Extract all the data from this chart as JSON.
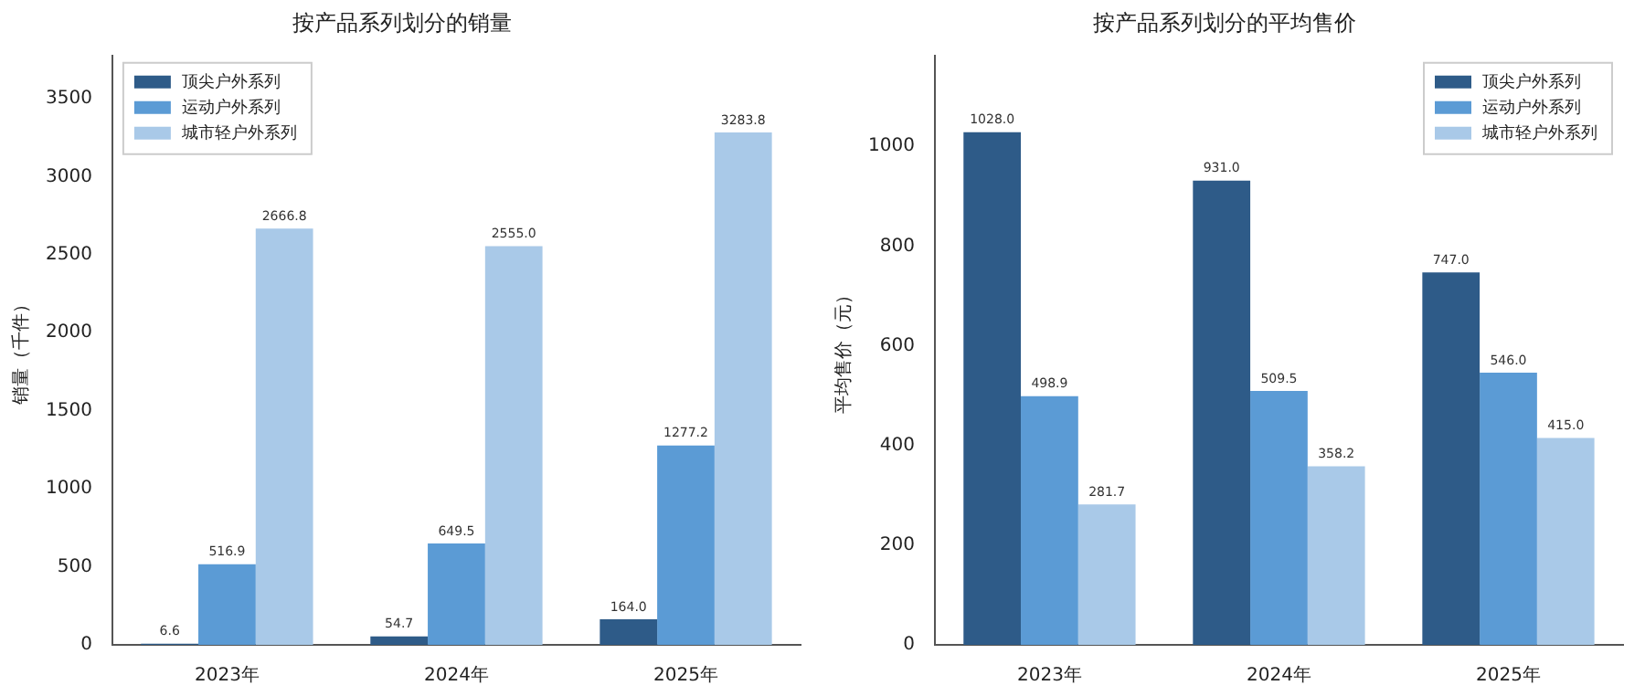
{
  "chart_data": [
    {
      "type": "bar",
      "title": "按产品系列划分的销量",
      "ylabel": "销量（千件）",
      "categories": [
        "2023年",
        "2024年",
        "2025年"
      ],
      "series": [
        {
          "name": "顶尖户外系列",
          "color": "#2e5b88",
          "values": [
            6.6,
            54.7,
            164
          ],
          "value_labels": [
            "6.6",
            "54.7",
            "164.0"
          ]
        },
        {
          "name": "运动户外系列",
          "color": "#5b9bd5",
          "values": [
            516.9,
            649.5,
            1277.2
          ],
          "value_labels": [
            "516.9",
            "649.5",
            "1277.2"
          ]
        },
        {
          "name": "城市轻户外系列",
          "color": "#a9c9e8",
          "values": [
            2666.8,
            2555,
            3283.8
          ],
          "value_labels": [
            "2666.8",
            "2555.0",
            "3283.8"
          ]
        }
      ],
      "ylim": [
        0,
        3776
      ],
      "yticks": [
        0,
        500,
        1000,
        1500,
        2000,
        2500,
        3000,
        3500
      ],
      "legend": "top left",
      "grid": false
    },
    {
      "type": "bar",
      "title": "按产品系列划分的平均售价",
      "ylabel": "平均售价（元）",
      "categories": [
        "2023年",
        "2024年",
        "2025年"
      ],
      "series": [
        {
          "name": "顶尖户外系列",
          "color": "#2e5b88",
          "values": [
            1028,
            931,
            747
          ],
          "value_labels": [
            "1028.0",
            "931.0",
            "747.0"
          ]
        },
        {
          "name": "运动户外系列",
          "color": "#5b9bd5",
          "values": [
            498.9,
            509.5,
            546
          ],
          "value_labels": [
            "498.9",
            "509.5",
            "546.0"
          ]
        },
        {
          "name": "城市轻户外系列",
          "color": "#a9c9e8",
          "values": [
            281.7,
            358.2,
            415
          ],
          "value_labels": [
            "281.7",
            "358.2",
            "415.0"
          ]
        }
      ],
      "ylim": [
        0,
        1182
      ],
      "yticks": [
        0,
        200,
        400,
        600,
        800,
        1000
      ],
      "legend": "top right",
      "grid": false
    }
  ]
}
